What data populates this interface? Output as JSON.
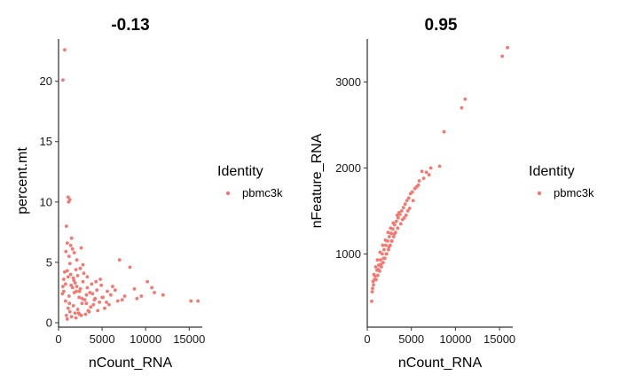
{
  "point_color": "#F8766D",
  "chart_data": [
    {
      "type": "scatter",
      "title": "-0.13",
      "xlabel": "nCount_RNA",
      "ylabel": "percent.mt",
      "xlim": [
        0,
        16500
      ],
      "ylim": [
        0,
        23.5
      ],
      "xticks": [
        0,
        5000,
        10000,
        15000
      ],
      "xtick_labels": [
        "0",
        "5000",
        "10000",
        "15000"
      ],
      "yticks": [
        0,
        5,
        10,
        15,
        20
      ],
      "ytick_labels": [
        "0",
        "5",
        "10",
        "15",
        "20"
      ],
      "legend": {
        "title": "Identity",
        "entries": [
          "pbmc3k"
        ]
      },
      "series": [
        {
          "name": "pbmc3k",
          "x": [
            700,
            500,
            1100,
            1300,
            1150,
            900,
            1500,
            2600,
            7000,
            2800,
            8200,
            10200,
            10700,
            15200,
            16000,
            11000,
            9500,
            8700,
            6200,
            5600,
            4900,
            4300,
            3800,
            3300,
            2900,
            2500,
            2100,
            1800,
            1600,
            1400,
            1200,
            1000,
            850,
            700,
            600,
            500,
            450,
            1100,
            1300,
            1700,
            1900,
            2200,
            2400,
            2700,
            3000,
            3200,
            3500,
            3700,
            4000,
            4200,
            4500,
            4700,
            5000,
            5300,
            5800,
            6500,
            7300,
            900,
            1000,
            1500,
            2000,
            2300,
            2600,
            3100,
            3400,
            1200,
            1600,
            1900,
            2400,
            800,
            1000,
            1300,
            1700,
            2000,
            2200,
            2500,
            2800,
            3300,
            3900,
            4400,
            5100,
            6000,
            6800,
            7600,
            600,
            800,
            1100,
            1400,
            1800,
            2100,
            2700,
            3200,
            3600,
            4100,
            4800,
            5500,
            9000,
            12000,
            1250,
            1450,
            1750,
            2050,
            2350
          ],
          "y": [
            22.6,
            20.1,
            10.4,
            10.2,
            10.0,
            8.0,
            7.0,
            6.2,
            5.2,
            4.8,
            4.6,
            3.4,
            2.9,
            1.8,
            1.8,
            2.5,
            2.2,
            2.8,
            3.0,
            2.6,
            3.1,
            3.4,
            3.2,
            3.8,
            4.1,
            4.5,
            5.2,
            5.8,
            6.1,
            6.4,
            5.5,
            6.6,
            5.9,
            4.2,
            3.6,
            3.0,
            2.4,
            1.2,
            0.9,
            1.4,
            0.8,
            1.1,
            0.7,
            1.6,
            1.9,
            2.3,
            0.9,
            1.3,
            1.5,
            2.0,
            1.0,
            1.7,
            2.1,
            1.2,
            1.5,
            2.7,
            1.9,
            0.6,
            0.3,
            0.5,
            0.4,
            0.8,
            0.6,
            0.7,
            1.0,
            2.2,
            2.9,
            3.3,
            2.6,
            1.8,
            4.3,
            4.9,
            3.7,
            4.4,
            3.9,
            2.8,
            3.4,
            2.9,
            2.4,
            2.7,
            2.1,
            2.3,
            1.8,
            2.2,
            2.6,
            3.2,
            3.8,
            4.0,
            2.5,
            3.0,
            2.0,
            1.6,
            2.5,
            1.9,
            3.6,
            1.7,
            2.0,
            2.3,
            1.6,
            3.1,
            3.5,
            2.6,
            2.1
          ]
        }
      ]
    },
    {
      "type": "scatter",
      "title": "0.95",
      "xlabel": "nCount_RNA",
      "ylabel": "nFeature_RNA",
      "xlim": [
        0,
        16500
      ],
      "ylim": [
        200,
        3500
      ],
      "xticks": [
        0,
        5000,
        10000,
        15000
      ],
      "xtick_labels": [
        "0",
        "5000",
        "10000",
        "15000"
      ],
      "yticks": [
        1000,
        2000,
        3000
      ],
      "ytick_labels": [
        "1000",
        "2000",
        "3000"
      ],
      "legend": {
        "title": "Identity",
        "entries": [
          "pbmc3k"
        ]
      },
      "series": [
        {
          "name": "pbmc3k",
          "x": [
            15900,
            15300,
            11100,
            10700,
            8700,
            8200,
            7200,
            6700,
            6200,
            5900,
            5600,
            5400,
            5100,
            4900,
            4700,
            4500,
            4300,
            4100,
            3900,
            3700,
            3500,
            3300,
            3100,
            2900,
            2700,
            2500,
            2300,
            2100,
            1900,
            1700,
            1500,
            1300,
            1100,
            900,
            800,
            700,
            600,
            550,
            500,
            3200,
            3000,
            2800,
            2600,
            2400,
            2200,
            2000,
            1800,
            1600,
            1400,
            1200,
            1000,
            4000,
            4400,
            4800,
            5200,
            3600,
            3400,
            2950,
            2650,
            2350,
            2050,
            1750,
            1450,
            1150,
            950,
            750,
            650,
            5800,
            6400,
            7000,
            4600,
            4200,
            3800,
            3450,
            3050,
            2750,
            2450,
            2150,
            1850,
            1550,
            1250
          ],
          "y": [
            3400,
            3300,
            2800,
            2700,
            2420,
            2020,
            2000,
            1950,
            1960,
            1850,
            1780,
            1760,
            1720,
            1700,
            1650,
            1620,
            1580,
            1540,
            1500,
            1460,
            1420,
            1380,
            1340,
            1290,
            1240,
            1200,
            1150,
            1100,
            1050,
            1000,
            930,
            870,
            810,
            740,
            700,
            640,
            600,
            560,
            450,
            1250,
            1200,
            1150,
            1100,
            1050,
            1000,
            950,
            900,
            850,
            800,
            750,
            700,
            1400,
            1450,
            1530,
            1620,
            1480,
            1450,
            1360,
            1300,
            1250,
            1160,
            1100,
            1020,
            930,
            850,
            760,
            680,
            1800,
            1880,
            1920,
            1500,
            1420,
            1350,
            1300,
            1230,
            1150,
            1080,
            1000,
            950,
            880,
            820
          ]
        }
      ]
    }
  ]
}
